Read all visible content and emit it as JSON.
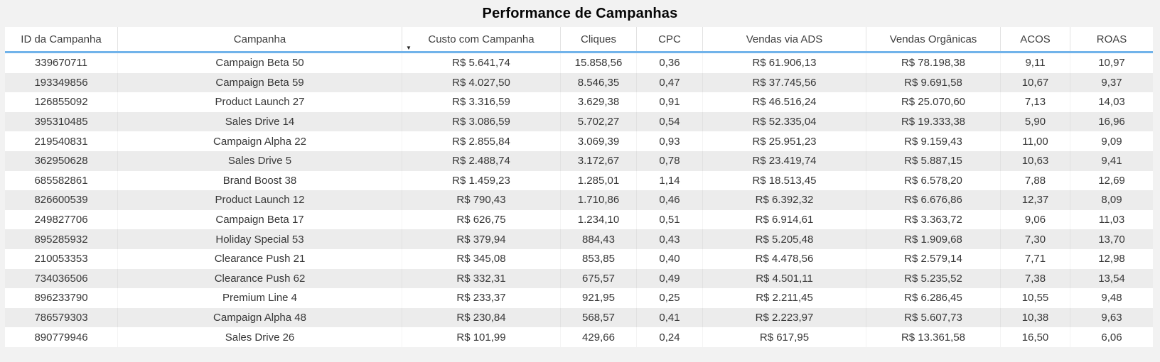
{
  "chart_data": {
    "type": "table",
    "title": "Performance de Campanhas",
    "columns": [
      {
        "key": "id",
        "label": "ID da Campanha"
      },
      {
        "key": "campanha",
        "label": "Campanha"
      },
      {
        "key": "custo",
        "label": "Custo com Campanha",
        "sorted": "desc"
      },
      {
        "key": "cliques",
        "label": "Cliques"
      },
      {
        "key": "cpc",
        "label": "CPC"
      },
      {
        "key": "vendas_ads",
        "label": "Vendas via ADS"
      },
      {
        "key": "vendas_organicas",
        "label": "Vendas Orgânicas"
      },
      {
        "key": "acos",
        "label": "ACOS"
      },
      {
        "key": "roas",
        "label": "ROAS"
      }
    ],
    "rows": [
      [
        "339670711",
        "Campaign Beta 50",
        "R$ 5.641,74",
        "15.858,56",
        "0,36",
        "R$ 61.906,13",
        "R$ 78.198,38",
        "9,11",
        "10,97"
      ],
      [
        "193349856",
        "Campaign Beta 59",
        "R$ 4.027,50",
        "8.546,35",
        "0,47",
        "R$ 37.745,56",
        "R$ 9.691,58",
        "10,67",
        "9,37"
      ],
      [
        "126855092",
        "Product Launch 27",
        "R$ 3.316,59",
        "3.629,38",
        "0,91",
        "R$ 46.516,24",
        "R$ 25.070,60",
        "7,13",
        "14,03"
      ],
      [
        "395310485",
        "Sales Drive 14",
        "R$ 3.086,59",
        "5.702,27",
        "0,54",
        "R$ 52.335,04",
        "R$ 19.333,38",
        "5,90",
        "16,96"
      ],
      [
        "219540831",
        "Campaign Alpha 22",
        "R$ 2.855,84",
        "3.069,39",
        "0,93",
        "R$ 25.951,23",
        "R$ 9.159,43",
        "11,00",
        "9,09"
      ],
      [
        "362950628",
        "Sales Drive 5",
        "R$ 2.488,74",
        "3.172,67",
        "0,78",
        "R$ 23.419,74",
        "R$ 5.887,15",
        "10,63",
        "9,41"
      ],
      [
        "685582861",
        "Brand Boost 38",
        "R$ 1.459,23",
        "1.285,01",
        "1,14",
        "R$ 18.513,45",
        "R$ 6.578,20",
        "7,88",
        "12,69"
      ],
      [
        "826600539",
        "Product Launch 12",
        "R$ 790,43",
        "1.710,86",
        "0,46",
        "R$ 6.392,32",
        "R$ 6.676,86",
        "12,37",
        "8,09"
      ],
      [
        "249827706",
        "Campaign Beta 17",
        "R$ 626,75",
        "1.234,10",
        "0,51",
        "R$ 6.914,61",
        "R$ 3.363,72",
        "9,06",
        "11,03"
      ],
      [
        "895285932",
        "Holiday Special 53",
        "R$ 379,94",
        "884,43",
        "0,43",
        "R$ 5.205,48",
        "R$ 1.909,68",
        "7,30",
        "13,70"
      ],
      [
        "210053353",
        "Clearance Push 21",
        "R$ 345,08",
        "853,85",
        "0,40",
        "R$ 4.478,56",
        "R$ 2.579,14",
        "7,71",
        "12,98"
      ],
      [
        "734036506",
        "Clearance Push 62",
        "R$ 332,31",
        "675,57",
        "0,49",
        "R$ 4.501,11",
        "R$ 5.235,52",
        "7,38",
        "13,54"
      ],
      [
        "896233790",
        "Premium Line 4",
        "R$ 233,37",
        "921,95",
        "0,25",
        "R$ 2.211,45",
        "R$ 6.286,45",
        "10,55",
        "9,48"
      ],
      [
        "786579303",
        "Campaign Alpha 48",
        "R$ 230,84",
        "568,57",
        "0,41",
        "R$ 2.223,97",
        "R$ 5.607,73",
        "10,38",
        "9,63"
      ],
      [
        "890779946",
        "Sales Drive 26",
        "R$ 101,99",
        "429,66",
        "0,24",
        "R$ 617,95",
        "R$ 13.361,58",
        "16,50",
        "6,06"
      ]
    ],
    "layout": {
      "grid": "alternating-rows",
      "header_underline": true,
      "text_align": "center"
    }
  },
  "icons": {
    "sort_descending": "▼"
  },
  "colors": {
    "page_background": "#F2F2F2",
    "header_background": "#FFFFFF",
    "header_underline": "#71B3EA",
    "row_background": "#FFFFFF",
    "row_alt_background": "#ECECEC",
    "text": "#373737",
    "title_text": "#050505"
  }
}
